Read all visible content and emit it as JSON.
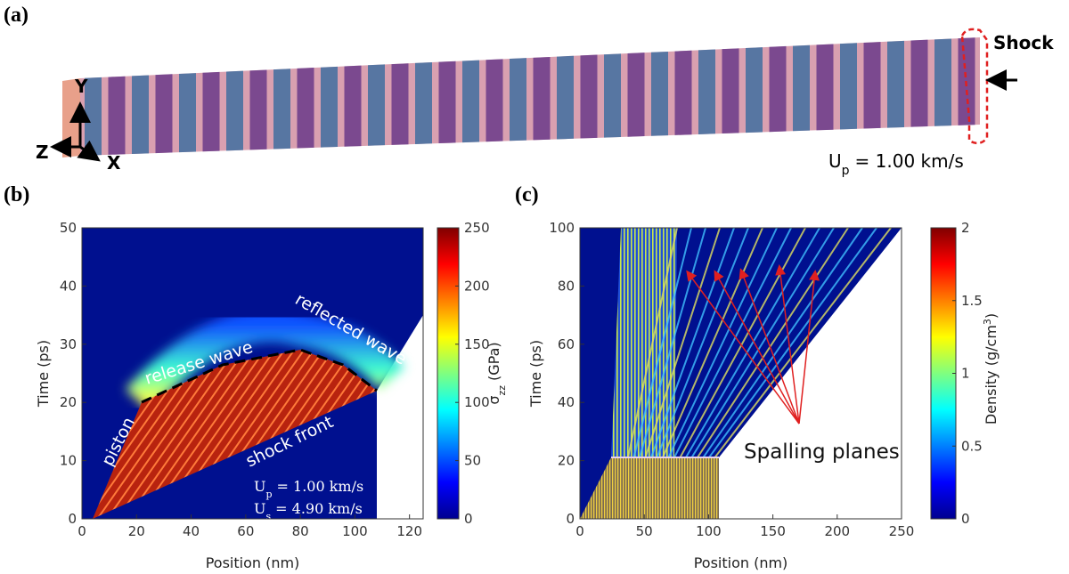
{
  "panel_a": {
    "label": "(a)",
    "shock": "Shock",
    "axes": {
      "y": "Y",
      "z": "Z",
      "x": "X"
    },
    "velocity": {
      "symbol": "U",
      "subscript": "p",
      "text": "= 1.00 km/s"
    }
  },
  "chart_data": [
    {
      "type": "heatmap",
      "panel_label": "(b)",
      "xlabel": "Position (nm)",
      "ylabel": "Time (ps)",
      "xlim": [
        0,
        125
      ],
      "ylim": [
        0,
        50
      ],
      "xticks": [
        0,
        20,
        40,
        60,
        80,
        100,
        120
      ],
      "yticks": [
        0,
        10,
        20,
        30,
        40,
        50
      ],
      "colorbar": {
        "label": {
          "symbol": "σ",
          "subscript": "zz",
          "text": "(GPa)"
        },
        "clim": [
          0,
          250
        ],
        "ticks": [
          0,
          50,
          100,
          150,
          200,
          250
        ]
      },
      "annotations": {
        "piston": "piston",
        "release": "release wave",
        "reflected": "reflected wave",
        "shock_front": "shock front",
        "up": {
          "symbol": "U",
          "subscript": "p",
          "text": "= 1.00 km/s"
        },
        "us": {
          "symbol": "U",
          "subscript": "s",
          "text": "= 4.90 km/s"
        }
      }
    },
    {
      "type": "heatmap",
      "panel_label": "(c)",
      "xlabel": "Position (nm)",
      "ylabel": "Time (ps)",
      "xlim": [
        0,
        250
      ],
      "ylim": [
        0,
        100
      ],
      "xticks": [
        0,
        50,
        100,
        150,
        200,
        250
      ],
      "yticks": [
        0,
        20,
        40,
        60,
        80,
        100
      ],
      "colorbar": {
        "label": {
          "text": "Density (g/cm",
          "superscript": "3",
          "close": ")"
        },
        "clim": [
          0,
          2
        ],
        "ticks": [
          0,
          0.5,
          1,
          1.5,
          2
        ]
      },
      "annotations": {
        "spalling": "Spalling planes"
      }
    }
  ]
}
